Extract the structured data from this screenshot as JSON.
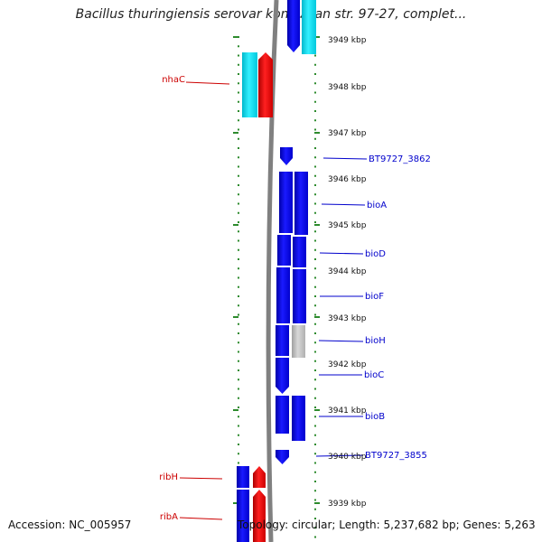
{
  "title": "Bacillus thuringiensis serovar konkukian str. 97-27, complet...",
  "footer": {
    "accession": "Accession: NC_005957",
    "summary": "Topology: circular; Length: 5,237,682 bp; Genes: 5,263"
  },
  "colors": {
    "forward_gene": "#ff0000",
    "forward_gene_alt": "#00e5ff",
    "reverse_gene": "#0000ff",
    "reverse_gene_alt": "#c0c0c0",
    "left_label": "#cc0000",
    "right_label": "#0000cc",
    "tick": "#2e8b2e",
    "backbone": "#808080"
  },
  "axis_ticks": [
    "3949 kbp",
    "3948 kbp",
    "3947 kbp",
    "3946 kbp",
    "3945 kbp",
    "3944 kbp",
    "3943 kbp",
    "3942 kbp",
    "3941 kbp",
    "3940 kbp",
    "3939 kbp"
  ],
  "left_labels": [
    "nhaC",
    "ribH",
    "ribA"
  ],
  "right_labels": [
    "BT9727_3862",
    "bioA",
    "bioD",
    "bioF",
    "bioH",
    "bioC",
    "bioB",
    "BT9727_3855"
  ]
}
